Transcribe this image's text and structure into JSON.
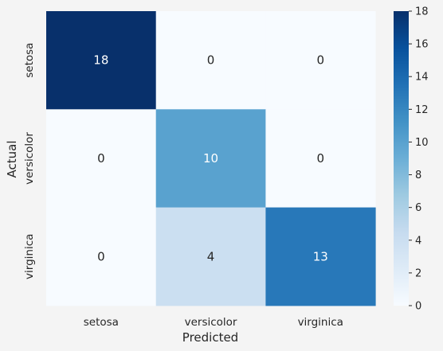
{
  "chart_data": {
    "type": "heatmap",
    "title": "",
    "xlabel": "Predicted",
    "ylabel": "Actual",
    "x_categories": [
      "setosa",
      "versicolor",
      "virginica"
    ],
    "y_categories": [
      "setosa",
      "versicolor",
      "virginica"
    ],
    "values": [
      [
        18,
        0,
        0
      ],
      [
        0,
        10,
        0
      ],
      [
        0,
        4,
        13
      ]
    ],
    "colormap": "Blues",
    "colorbar": {
      "min": 0,
      "max": 18,
      "ticks": [
        "0",
        "2",
        "4",
        "6",
        "8",
        "10",
        "12",
        "14",
        "16",
        "18"
      ]
    }
  },
  "colors": {
    "background": "#f4f4f4",
    "cmap_low": "#f7fbff",
    "cmap_high": "#08306b"
  }
}
